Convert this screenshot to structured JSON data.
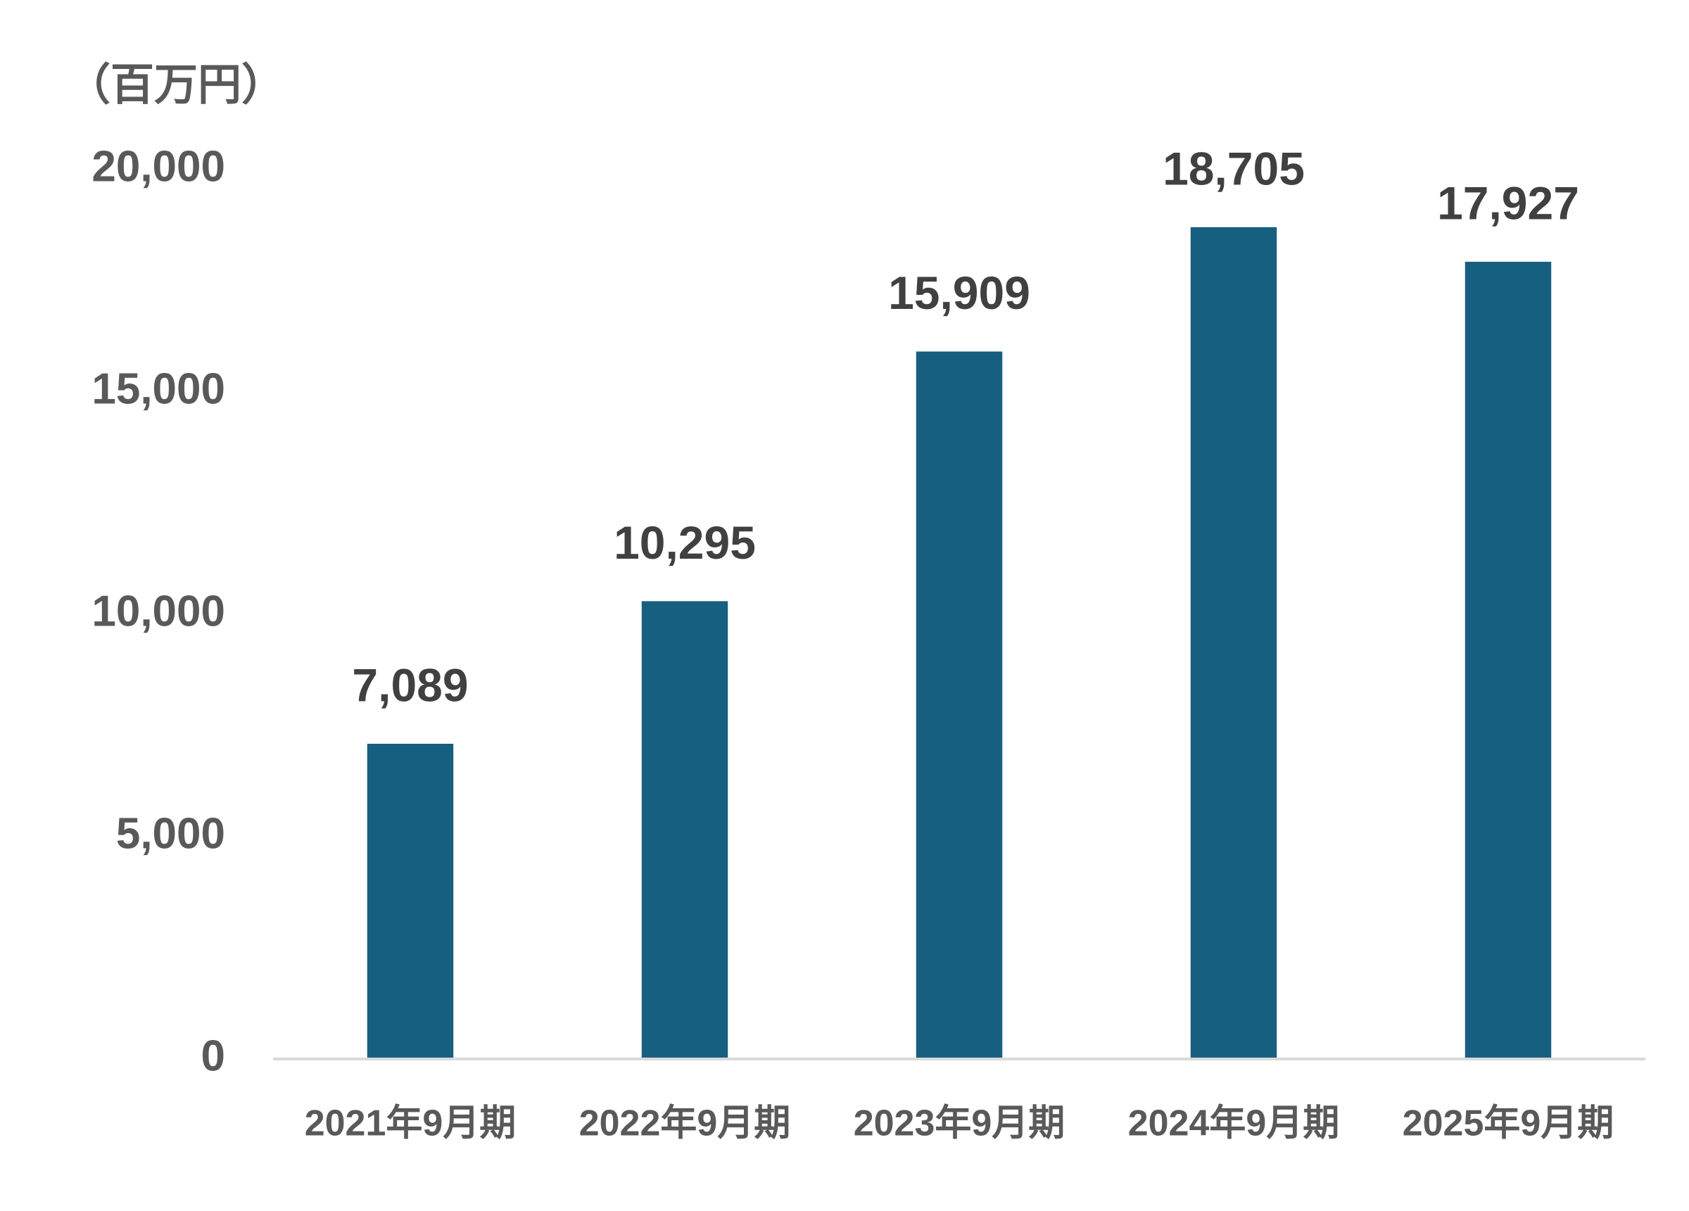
{
  "chart_data": {
    "type": "bar",
    "y_axis_label": "（百万円）",
    "categories": [
      "2021年9月期",
      "2022年9月期",
      "2023年9月期",
      "2024年9月期",
      "2025年9月期"
    ],
    "values": [
      7089,
      10295,
      15909,
      18705,
      17927
    ],
    "value_labels": [
      "7,089",
      "10,295",
      "15,909",
      "18,705",
      "17,927"
    ],
    "color": "#175f80",
    "ylim": [
      0,
      20000
    ],
    "yticks": [
      0,
      {
        "value": 5000,
        "label": "5,000"
      },
      {
        "value": 10000,
        "label": "10,000"
      },
      {
        "value": 15000,
        "label": "15,000"
      },
      {
        "value": 20000,
        "label": "20,000"
      }
    ],
    "grid": false
  }
}
